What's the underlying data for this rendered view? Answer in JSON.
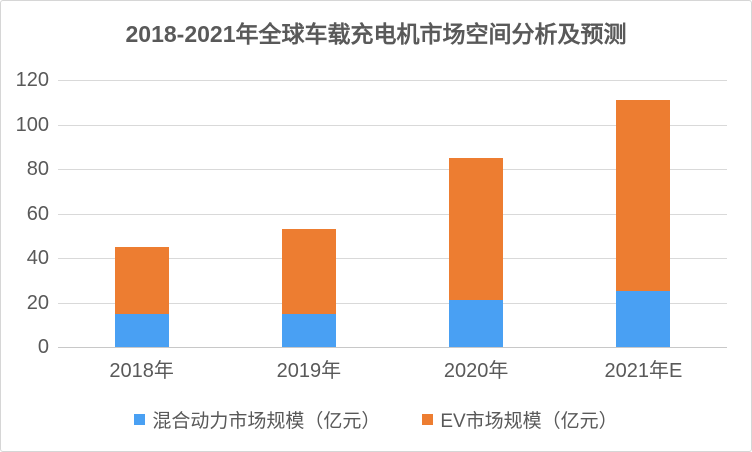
{
  "chart_data": {
    "type": "bar",
    "stacked": true,
    "title": "2018-2021年全球车载充电机市场空间分析及预测",
    "categories": [
      "2018年",
      "2019年",
      "2020年",
      "2021年E"
    ],
    "series": [
      {
        "name": "混合动力市场规模（亿元）",
        "color": "#49A0F3",
        "values": [
          15,
          15,
          21,
          25
        ]
      },
      {
        "name": "EV市场规模（亿元）",
        "color": "#ED7D31",
        "values": [
          30,
          38,
          64,
          86
        ]
      }
    ],
    "totals": [
      45,
      53,
      85,
      111
    ],
    "ylim": [
      0,
      120
    ],
    "ytick_step": 20,
    "ytick_labels": [
      "0",
      "20",
      "40",
      "60",
      "80",
      "100",
      "120"
    ],
    "grid": true,
    "legend_position": "bottom",
    "theme": {
      "text_color": "#595959",
      "grid_color": "#D9D9D9",
      "baseline_color": "#C8C8C8",
      "border_color": "#D6D6D6",
      "background": "#FFFFFF"
    }
  }
}
